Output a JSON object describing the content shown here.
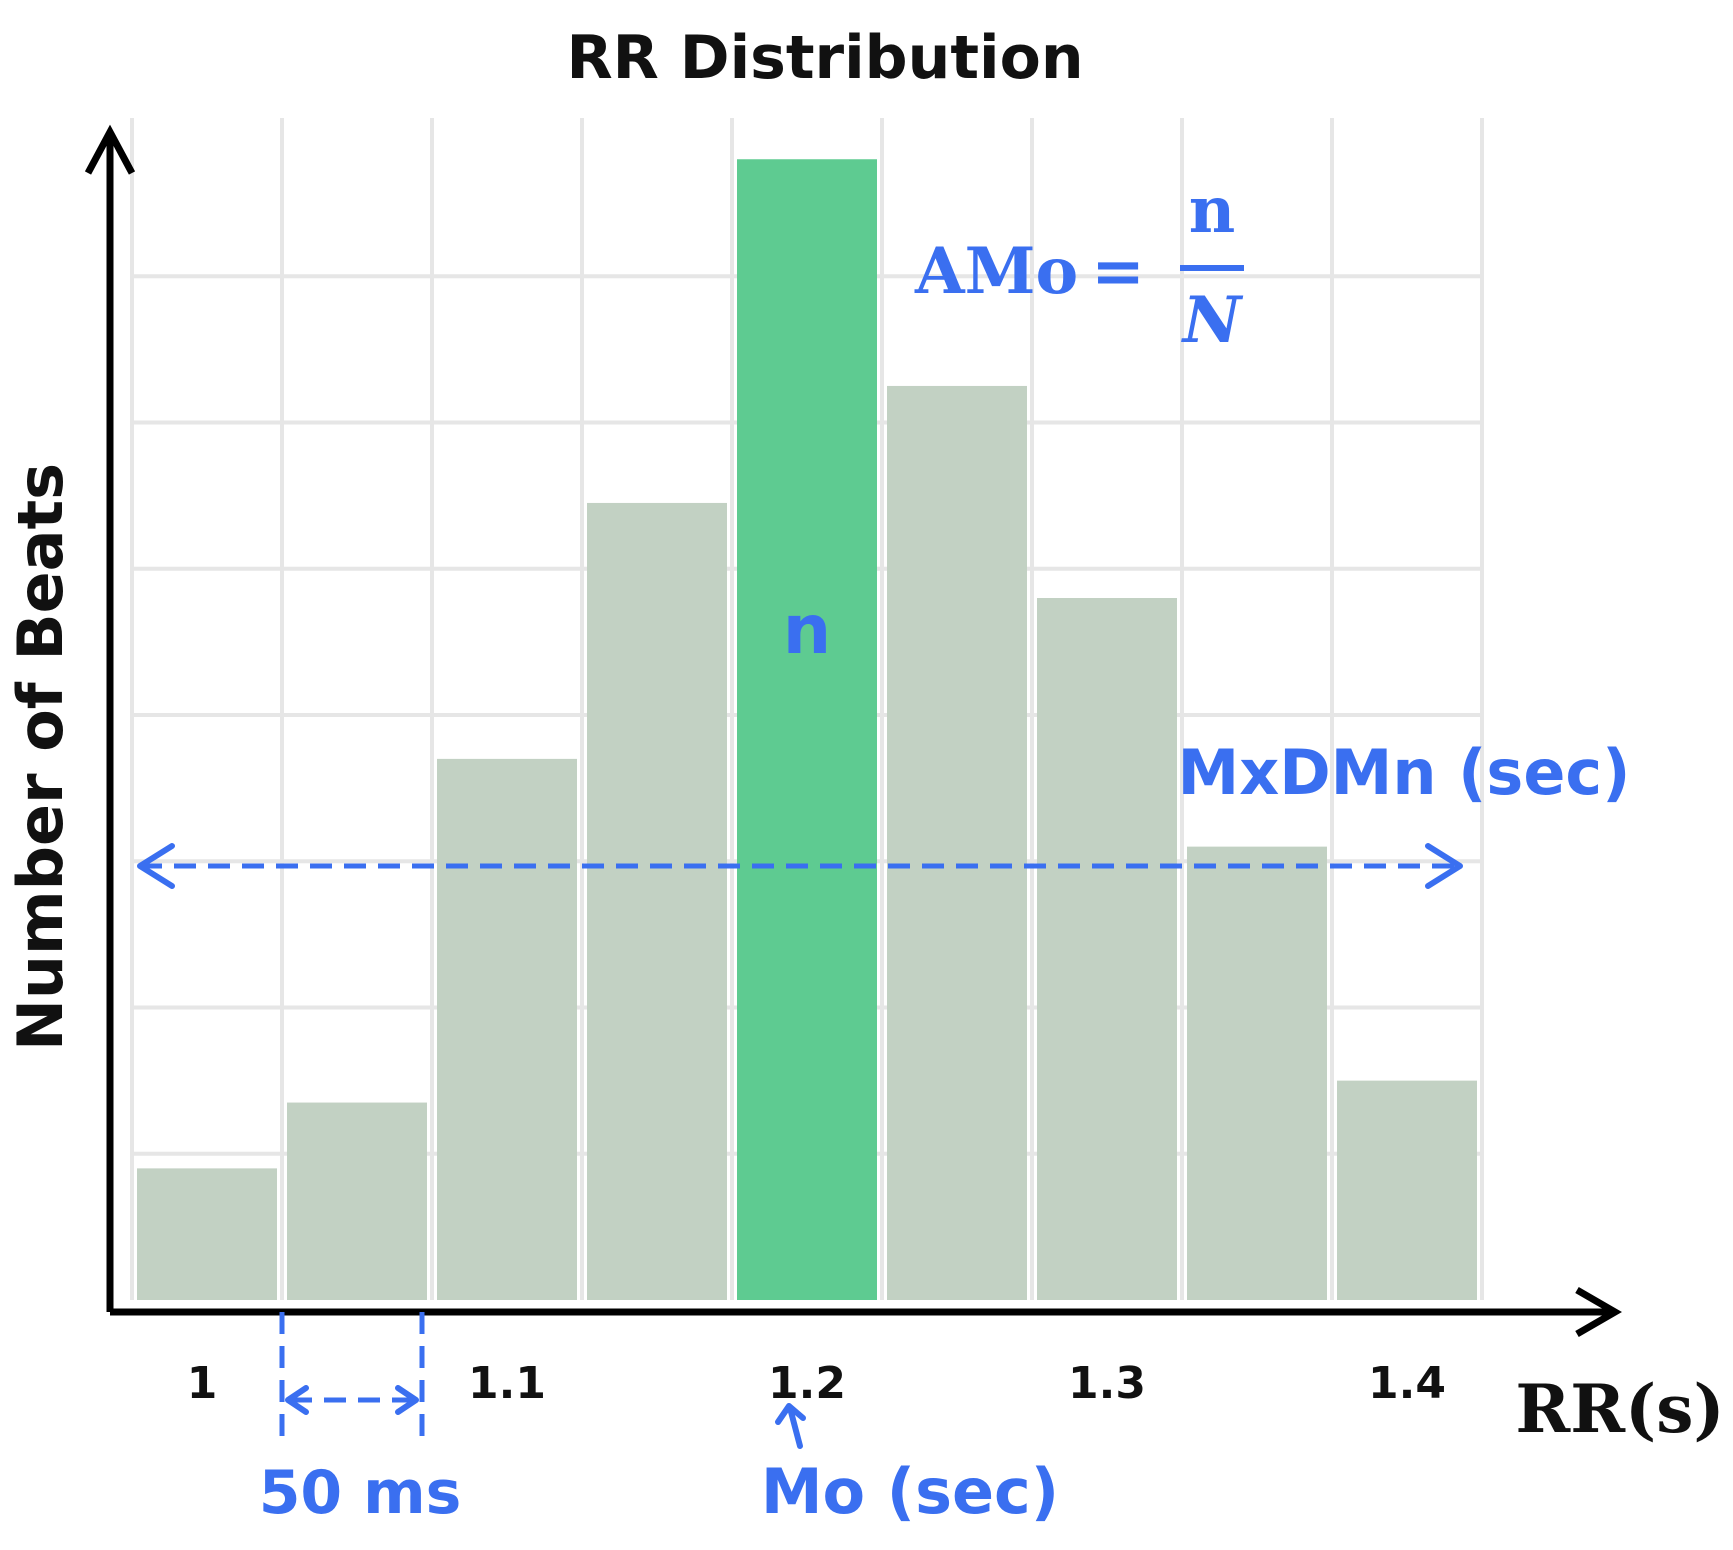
{
  "chart_data": {
    "type": "bar",
    "title": "RR Distribution",
    "xlabel": "RR(s)",
    "ylabel": "Number of Beats",
    "bin_width_label": "50 ms",
    "x_ticks": [
      "1",
      "1.1",
      "1.2",
      "1.3",
      "1.4"
    ],
    "bins": [
      1.0,
      1.05,
      1.1,
      1.15,
      1.2,
      1.25,
      1.3,
      1.35,
      1.4
    ],
    "values": [
      0.9,
      1.35,
      3.7,
      5.45,
      7.8,
      6.25,
      4.8,
      3.1,
      1.5
    ],
    "highlight_index": 4,
    "ylim": [
      0,
      8
    ],
    "grid": true,
    "annotations": {
      "bar_label": "n",
      "amo_lhs": "AMo",
      "amo_eq": "=",
      "amo_num": "n",
      "amo_den": "N",
      "range_label": "MxDMn (sec)",
      "mode_label": "Mo (sec)"
    },
    "colors": {
      "bar": "#c2d1c3",
      "highlight": "#5ecb91",
      "annotation": "#3a6ff0",
      "grid": "#e6e6e6"
    }
  }
}
